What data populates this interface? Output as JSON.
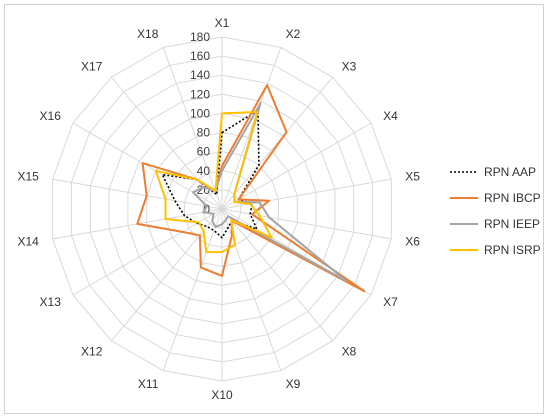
{
  "chart_data": {
    "type": "radar",
    "title": "",
    "categories": [
      "X1",
      "X2",
      "X3",
      "X4",
      "X5",
      "X6",
      "X7",
      "X8",
      "X9",
      "X10",
      "X11",
      "X12",
      "X13",
      "X14",
      "X15",
      "X16",
      "X17",
      "X18"
    ],
    "r_ticks": [
      0,
      20,
      40,
      60,
      80,
      100,
      120,
      140,
      160,
      180
    ],
    "rlim": [
      0,
      180
    ],
    "grid": true,
    "legend_position": "right",
    "series": [
      {
        "name": "RPN AAP",
        "color": "#000000",
        "dash": "dotted",
        "values": [
          80,
          110,
          60,
          20,
          32,
          30,
          42,
          16,
          20,
          30,
          24,
          24,
          30,
          40,
          50,
          72,
          40,
          16
        ]
      },
      {
        "name": "RPN IBCP",
        "color": "#ED7D31",
        "dash": "solid",
        "values": [
          45,
          138,
          105,
          20,
          50,
          32,
          172,
          16,
          30,
          70,
          65,
          36,
          48,
          90,
          80,
          96,
          40,
          20
        ]
      },
      {
        "name": "RPN IEEP",
        "color": "#A5A5A5",
        "dash": "solid",
        "values": [
          40,
          118,
          20,
          15,
          40,
          50,
          150,
          10,
          12,
          16,
          20,
          16,
          10,
          20,
          16,
          35,
          30,
          20
        ]
      },
      {
        "name": "RPN ISRP",
        "color": "#FFC000",
        "dash": "solid",
        "values": [
          100,
          108,
          20,
          15,
          30,
          40,
          60,
          15,
          40,
          45,
          48,
          30,
          28,
          60,
          60,
          80,
          40,
          20
        ]
      }
    ]
  }
}
